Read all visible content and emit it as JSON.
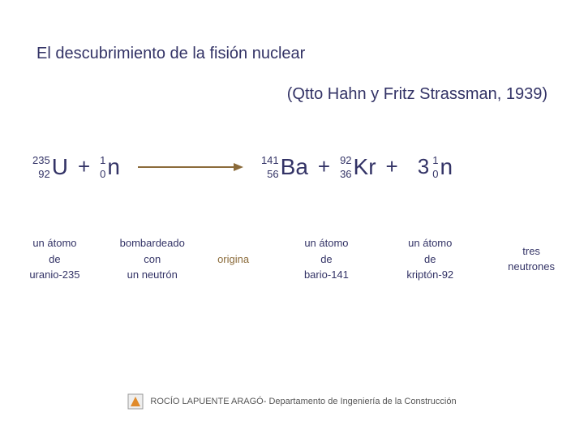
{
  "title": {
    "line1": "El descubrimiento de la fisión nuclear",
    "line2": "(Qtto Hahn y Fritz Strassman, 1939)"
  },
  "equation": {
    "u235": {
      "mass": "235",
      "z": "92",
      "sym": "U"
    },
    "plus1": "+",
    "n1": {
      "mass": "1",
      "z": "0",
      "sym": "n"
    },
    "ba141": {
      "mass": "141",
      "z": "56",
      "sym": "Ba"
    },
    "plus2": "+",
    "kr92": {
      "mass": "92",
      "z": "36",
      "sym": "Kr"
    },
    "plus3": "+",
    "coef3": "3",
    "n2": {
      "mass": "1",
      "z": "0",
      "sym": "n"
    }
  },
  "arrow": {
    "color": "#8b6b3a",
    "length": 130,
    "stroke_width": 2
  },
  "descriptions": {
    "uranium": "un átomo\nde\nuranio-235",
    "bombard": "bombardeado\ncon\nun neutrón",
    "origina": "origina",
    "barium": "un átomo\nde\nbario-141",
    "krypton": "un átomo\nde\nkriptón-92",
    "neutrons": "tres\nneutrones"
  },
  "footer": {
    "text": "ROCÍO LAPUENTE ARAGÓ- Departamento de Ingeniería de la Construcción",
    "logo_colors": {
      "bg": "#eeeeee",
      "tri": "#e08a2a",
      "border": "#999999"
    }
  },
  "layout": {
    "desc_widths": [
      95,
      110,
      70,
      100,
      100,
      90
    ],
    "desc_gaps": [
      0,
      18,
      10,
      30,
      28,
      30
    ]
  },
  "colors": {
    "text_main": "#333366",
    "text_accent": "#8b6b3a",
    "bg": "#ffffff"
  }
}
